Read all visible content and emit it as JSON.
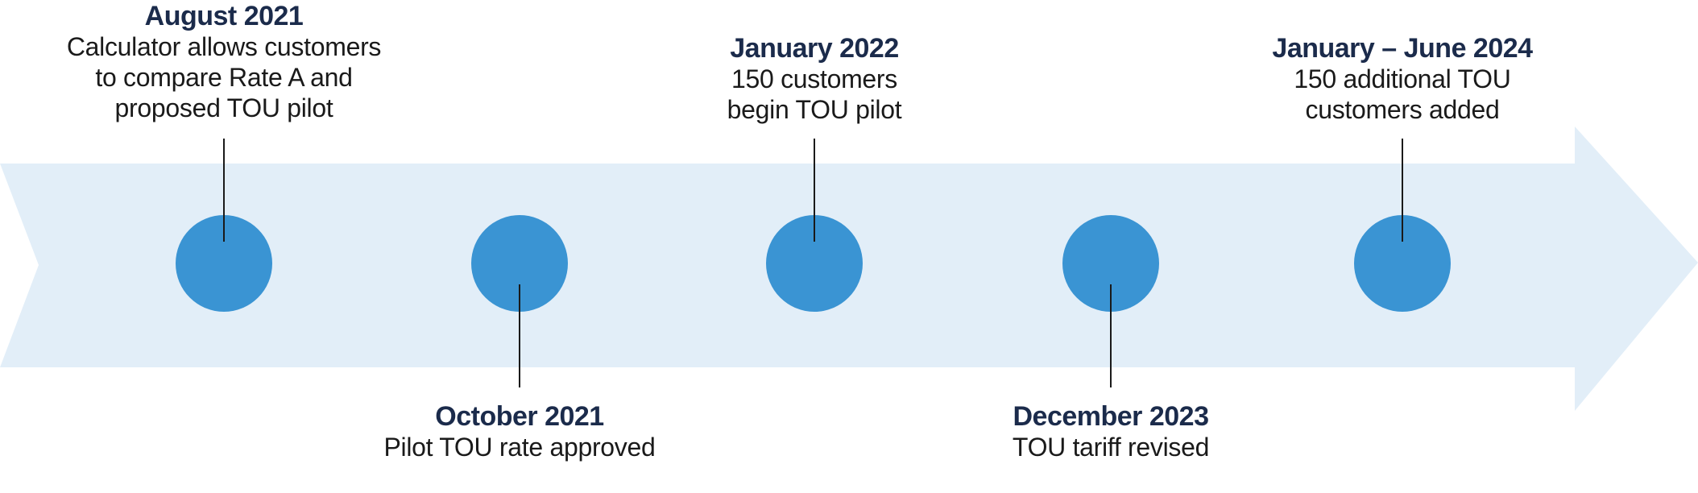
{
  "colors": {
    "band": "#e2eef8",
    "marker": "#3a94d3",
    "connector": "#1a1a1a",
    "date_text": "#1b2b4b",
    "desc_text": "#1a1a1a"
  },
  "events": [
    {
      "date": "August 2021",
      "description_lines": [
        "Calculator allows customers",
        "to compare Rate A and",
        "proposed TOU pilot"
      ]
    },
    {
      "date": "October 2021",
      "description_lines": [
        "Pilot TOU rate approved"
      ]
    },
    {
      "date": "January 2022",
      "description_lines": [
        "150 customers",
        "begin TOU pilot"
      ]
    },
    {
      "date": "December 2023",
      "description_lines": [
        "TOU tariff revised"
      ]
    },
    {
      "date": "January – June 2024",
      "description_lines": [
        "150 additional TOU",
        "customers added"
      ]
    }
  ]
}
